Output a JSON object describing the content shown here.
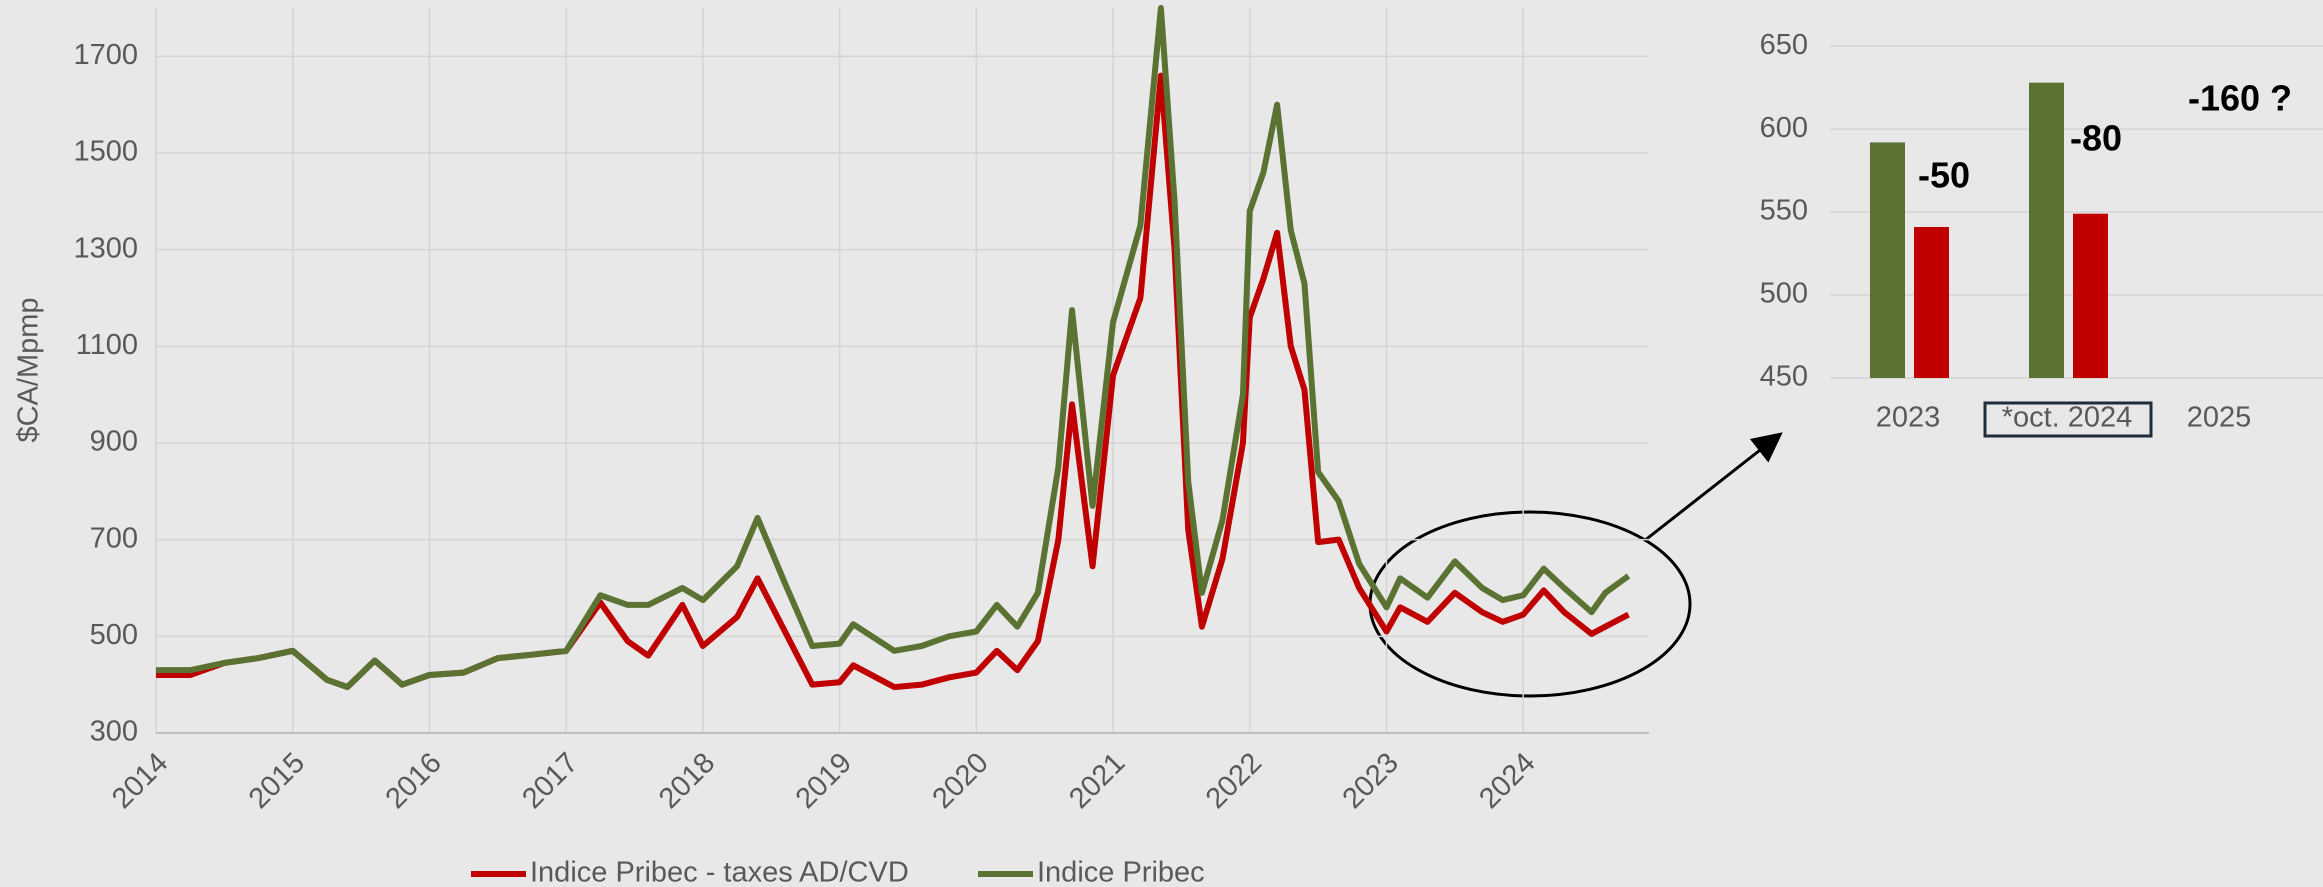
{
  "chart_data": [
    {
      "type": "line",
      "ylabel": "$CA/Mpmp",
      "x": [
        2014.0,
        2014.25,
        2014.5,
        2014.75,
        2015.0,
        2015.25,
        2015.4,
        2015.6,
        2015.8,
        2016.0,
        2016.25,
        2016.5,
        2016.75,
        2017.0,
        2017.25,
        2017.45,
        2017.6,
        2017.85,
        2018.0,
        2018.25,
        2018.4,
        2018.6,
        2018.8,
        2019.0,
        2019.1,
        2019.4,
        2019.6,
        2019.8,
        2020.0,
        2020.15,
        2020.3,
        2020.45,
        2020.6,
        2020.7,
        2020.85,
        2021.0,
        2021.2,
        2021.35,
        2021.45,
        2021.55,
        2021.65,
        2021.8,
        2021.95,
        2022.0,
        2022.1,
        2022.2,
        2022.3,
        2022.4,
        2022.5,
        2022.65,
        2022.8,
        2023.0,
        2023.1,
        2023.3,
        2023.5,
        2023.7,
        2023.85,
        2024.0,
        2024.15,
        2024.3,
        2024.5,
        2024.6,
        2024.77
      ],
      "series": [
        {
          "name": "Indice Pribec - taxes AD/CVD",
          "color": "#c00000",
          "values": [
            420,
            420,
            445,
            455,
            470,
            410,
            395,
            450,
            400,
            420,
            425,
            455,
            462,
            470,
            570,
            490,
            460,
            565,
            480,
            540,
            620,
            510,
            400,
            405,
            440,
            395,
            400,
            415,
            425,
            470,
            430,
            490,
            700,
            980,
            645,
            1040,
            1200,
            1660,
            1300,
            720,
            520,
            660,
            900,
            1160,
            1240,
            1335,
            1100,
            1010,
            695,
            700,
            600,
            510,
            560,
            530,
            590,
            550,
            530,
            545,
            595,
            550,
            505,
            520,
            545
          ]
        },
        {
          "name": "Indice Pribec",
          "color": "#5a7232",
          "values": [
            430,
            430,
            445,
            455,
            470,
            410,
            395,
            450,
            400,
            420,
            425,
            455,
            462,
            470,
            585,
            565,
            565,
            600,
            575,
            645,
            745,
            610,
            480,
            485,
            525,
            470,
            480,
            500,
            510,
            565,
            520,
            590,
            850,
            1175,
            770,
            1150,
            1350,
            1800,
            1400,
            820,
            590,
            740,
            1000,
            1380,
            1460,
            1600,
            1340,
            1230,
            840,
            780,
            650,
            560,
            620,
            580,
            655,
            600,
            575,
            585,
            640,
            600,
            550,
            590,
            625
          ]
        }
      ],
      "xlim": [
        2014,
        2024.92
      ],
      "xticks": [
        2014,
        2015,
        2016,
        2017,
        2018,
        2019,
        2020,
        2021,
        2022,
        2023,
        2024
      ],
      "ylim": [
        300,
        1800
      ],
      "yticks": [
        300,
        500,
        700,
        900,
        1100,
        1300,
        1500,
        1700
      ],
      "grid": true
    },
    {
      "type": "bar",
      "categories": [
        "2023",
        "*oct. 2024",
        "2025"
      ],
      "series": [
        {
          "name": "Indice Pribec",
          "color": "#5a7232",
          "values": [
            592,
            628,
            null
          ]
        },
        {
          "name": "Indice Pribec - taxes AD/CVD",
          "color": "#c00000",
          "values": [
            541,
            549,
            null
          ]
        }
      ],
      "annotations": [
        "-50",
        "-80",
        "-160 ?"
      ],
      "ylim": [
        450,
        673
      ],
      "yticks": [
        450,
        500,
        550,
        600,
        650
      ],
      "grid": true
    }
  ]
}
